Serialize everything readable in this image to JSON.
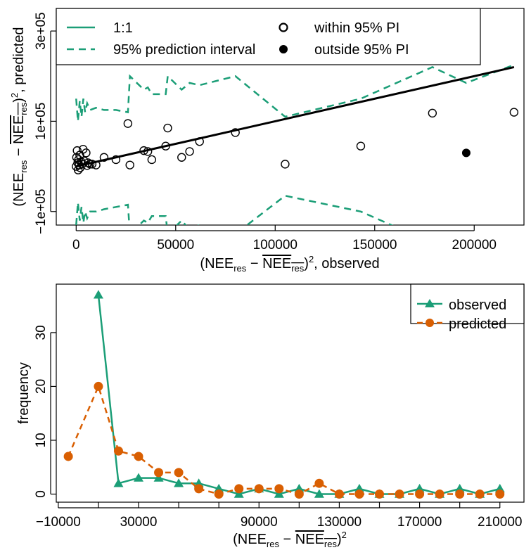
{
  "colors": {
    "green": "#1b9e77",
    "orange": "#d95f02",
    "black": "#000000"
  },
  "chart_data": [
    {
      "id": "scatter",
      "type": "scatter",
      "title": "",
      "xlabel": "(NEE_res - mean NEE_res)^2, observed",
      "ylabel": "(NEE_res - mean NEE_res)^2, predicted",
      "xlim": [
        -10000,
        225000
      ],
      "ylim": [
        -130000,
        350000
      ],
      "xticks": [
        0,
        50000,
        100000,
        150000,
        200000
      ],
      "xtick_labels": [
        "0",
        "50000",
        "100000",
        "150000",
        "200000"
      ],
      "yticks": [
        -100000,
        100000,
        300000
      ],
      "ytick_labels": [
        "−1e+05",
        "1e+05",
        "3e+05"
      ],
      "legend": {
        "placement": "top",
        "items": [
          {
            "label": "1:1",
            "symbol": "solid-line",
            "color": "#1b9e77"
          },
          {
            "label": "95% prediction interval",
            "symbol": "dashed-line",
            "color": "#1b9e77"
          },
          {
            "label": "within 95% PI",
            "symbol": "open-circle",
            "color": "#000000"
          },
          {
            "label": "outside 95% PI",
            "symbol": "filled-circle",
            "color": "#000000"
          }
        ]
      },
      "fit_line": {
        "x": [
          0,
          220000
        ],
        "y": [
          0,
          220000
        ]
      },
      "points_within": [
        [
          0,
          0
        ],
        [
          200,
          20000
        ],
        [
          500,
          35000
        ],
        [
          800,
          8000
        ],
        [
          1000,
          -8000
        ],
        [
          1200,
          15000
        ],
        [
          1500,
          3000
        ],
        [
          1800,
          25000
        ],
        [
          2000,
          -3000
        ],
        [
          2500,
          10000
        ],
        [
          3000,
          5000
        ],
        [
          3500,
          38000
        ],
        [
          4000,
          12000
        ],
        [
          5000,
          30000
        ],
        [
          5500,
          2000
        ],
        [
          6000,
          8000
        ],
        [
          7000,
          5000
        ],
        [
          8000,
          5000
        ],
        [
          10000,
          3000
        ],
        [
          14000,
          20000
        ],
        [
          20000,
          15000
        ],
        [
          26000,
          95000
        ],
        [
          27000,
          3000
        ],
        [
          34000,
          35000
        ],
        [
          36000,
          33000
        ],
        [
          38000,
          15000
        ],
        [
          45000,
          45000
        ],
        [
          46000,
          85000
        ],
        [
          53000,
          20000
        ],
        [
          57000,
          33000
        ],
        [
          62000,
          55000
        ],
        [
          80000,
          75000
        ],
        [
          105000,
          5000
        ],
        [
          143000,
          45000
        ],
        [
          179000,
          118000
        ],
        [
          220000,
          120000
        ]
      ],
      "points_outside": [
        [
          196000,
          30000
        ]
      ],
      "pi_upper": [
        [
          0,
          150000
        ],
        [
          900,
          100000
        ],
        [
          1800,
          145000
        ],
        [
          2700,
          110000
        ],
        [
          3600,
          150000
        ],
        [
          4500,
          120000
        ],
        [
          5500,
          140000
        ],
        [
          7000,
          125000
        ],
        [
          10000,
          130000
        ],
        [
          14000,
          125000
        ],
        [
          20000,
          125000
        ],
        [
          26000,
          120000
        ],
        [
          27000,
          200000
        ],
        [
          34000,
          170000
        ],
        [
          36000,
          175000
        ],
        [
          38000,
          160000
        ],
        [
          45000,
          160000
        ],
        [
          46000,
          200000
        ],
        [
          53000,
          170000
        ],
        [
          57000,
          185000
        ],
        [
          62000,
          180000
        ],
        [
          80000,
          200000
        ],
        [
          105000,
          110000
        ],
        [
          143000,
          150000
        ],
        [
          179000,
          220000
        ],
        [
          196000,
          185000
        ],
        [
          220000,
          225000
        ]
      ],
      "pi_lower": [
        [
          0,
          -130000
        ],
        [
          900,
          -80000
        ],
        [
          1800,
          -120000
        ],
        [
          2700,
          -90000
        ],
        [
          3600,
          -125000
        ],
        [
          4500,
          -100000
        ],
        [
          5500,
          -115000
        ],
        [
          7000,
          -100000
        ],
        [
          10000,
          -100000
        ],
        [
          14000,
          -95000
        ],
        [
          20000,
          -90000
        ],
        [
          26000,
          -85000
        ],
        [
          27000,
          -150000
        ],
        [
          34000,
          -120000
        ],
        [
          36000,
          -125000
        ],
        [
          38000,
          -110000
        ],
        [
          45000,
          -110000
        ],
        [
          46000,
          -150000
        ],
        [
          53000,
          -120000
        ],
        [
          57000,
          -140000
        ],
        [
          62000,
          -130000
        ],
        [
          80000,
          -150000
        ],
        [
          105000,
          -65000
        ],
        [
          143000,
          -100000
        ],
        [
          179000,
          -170000
        ],
        [
          196000,
          -145000
        ],
        [
          220000,
          -175000
        ]
      ]
    },
    {
      "id": "histogram",
      "type": "line",
      "title": "",
      "xlabel": "(NEE_res - mean NEE_res)^2",
      "ylabel": "frequency",
      "xlim": [
        -11000,
        222000
      ],
      "ylim": [
        -1.5,
        39
      ],
      "xticks": [
        -10000,
        30000,
        70000,
        110000,
        150000,
        190000
      ],
      "xticks_minor": [
        10000,
        50000,
        90000,
        130000,
        170000,
        210000
      ],
      "xtick_labels": [
        "−10000",
        "30000",
        "90000",
        "130000",
        "170000",
        "210000"
      ],
      "xtick_label_values": [
        -10000,
        30000,
        90000,
        130000,
        170000,
        210000
      ],
      "yticks": [
        0,
        10,
        20,
        30
      ],
      "ytick_labels": [
        "0",
        "10",
        "20",
        "30"
      ],
      "legend": {
        "placement": "top-right",
        "items": [
          {
            "label": "observed",
            "symbol": "triangle",
            "color": "#1b9e77",
            "dash": "solid"
          },
          {
            "label": "predicted",
            "symbol": "circle",
            "color": "#d95f02",
            "dash": "dashed"
          }
        ]
      },
      "series": [
        {
          "name": "observed",
          "color": "#1b9e77",
          "marker": "triangle",
          "dash": "solid",
          "x": [
            10000,
            20000,
            30000,
            40000,
            50000,
            60000,
            70000,
            80000,
            90000,
            100000,
            110000,
            120000,
            130000,
            140000,
            150000,
            160000,
            170000,
            180000,
            190000,
            200000,
            210000
          ],
          "values": [
            37,
            2,
            3,
            3,
            2,
            2,
            1,
            0,
            1,
            0,
            1,
            0,
            0,
            1,
            0,
            0,
            1,
            0,
            1,
            0,
            1
          ]
        },
        {
          "name": "predicted",
          "color": "#d95f02",
          "marker": "circle",
          "dash": "dashed",
          "x": [
            -5000,
            10000,
            20000,
            30000,
            40000,
            50000,
            60000,
            70000,
            80000,
            90000,
            100000,
            110000,
            120000,
            130000,
            140000,
            150000,
            160000,
            170000,
            180000,
            190000,
            200000,
            210000
          ],
          "values": [
            7,
            20,
            8,
            7,
            4,
            4,
            1,
            0,
            1,
            1,
            1,
            0,
            2,
            0,
            0,
            0,
            0,
            0,
            0,
            0,
            0,
            0
          ]
        }
      ]
    }
  ]
}
